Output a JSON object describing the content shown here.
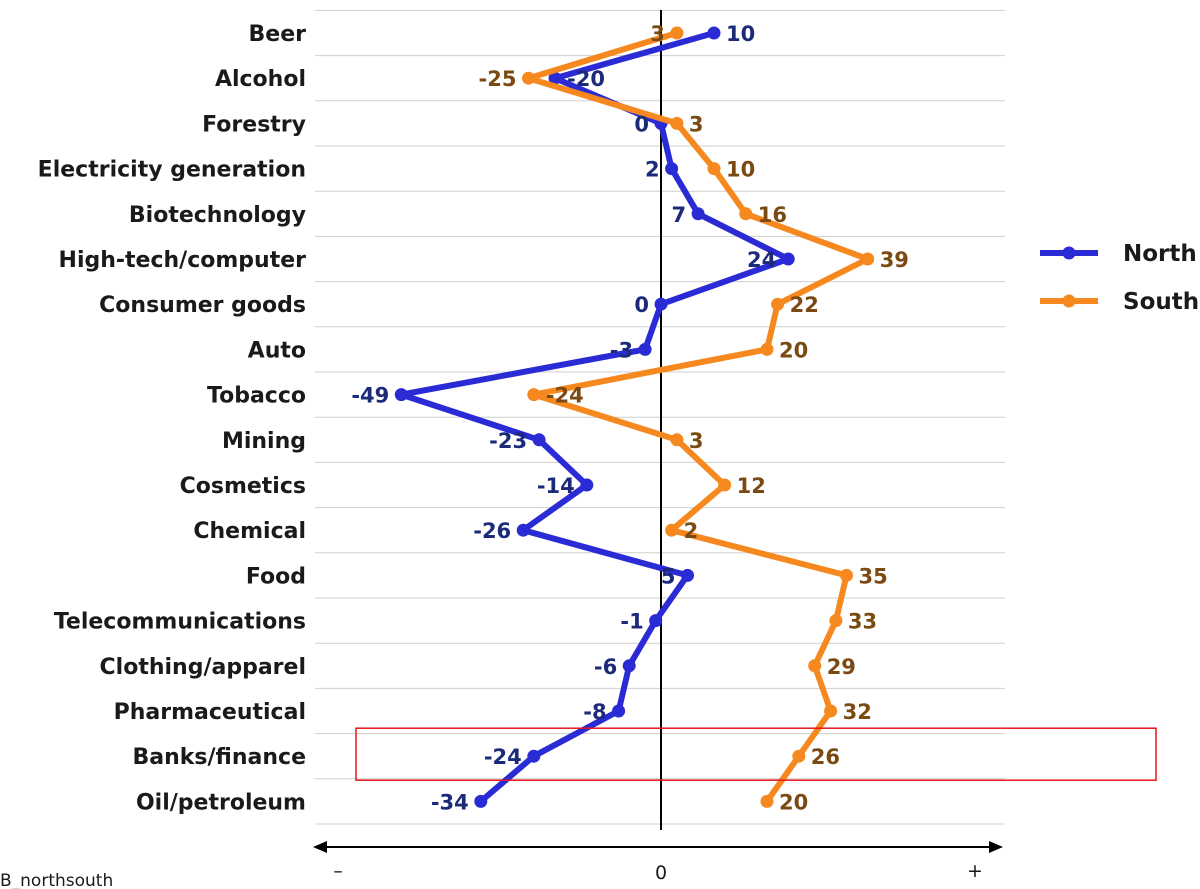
{
  "chart_data": {
    "type": "line",
    "orientation": "horizontal",
    "categories": [
      "Beer",
      "Alcohol",
      "Forestry",
      "Electricity generation",
      "Biotechnology",
      "High-tech/computer",
      "Consumer goods",
      "Auto",
      "Tobacco",
      "Mining",
      "Cosmetics",
      "Chemical",
      "Food",
      "Telecommunications",
      "Clothing/apparel",
      "Pharmaceutical",
      "Banks/finance",
      "Oil/petroleum"
    ],
    "series": [
      {
        "name": "North",
        "color": "#2b2bd6",
        "label_color": "#1c2a7a",
        "values": [
          10,
          -20,
          0,
          2,
          7,
          24,
          0,
          -3,
          -49,
          -23,
          -14,
          -26,
          5,
          -1,
          -6,
          -8,
          -24,
          -34
        ]
      },
      {
        "name": "South",
        "color": "#f5891f",
        "label_color": "#7a4a12",
        "values": [
          3,
          -25,
          3,
          10,
          16,
          39,
          22,
          20,
          -24,
          3,
          12,
          2,
          35,
          33,
          29,
          32,
          26,
          20
        ]
      }
    ],
    "xlim": [
      -65,
      65
    ],
    "axis_labels": {
      "min": "–",
      "zero": "0",
      "max": "+"
    },
    "legend": "right",
    "grid": true,
    "highlight_category": "Banks/finance",
    "highlight_color": "#e8141b"
  },
  "footer": "B_northsouth"
}
